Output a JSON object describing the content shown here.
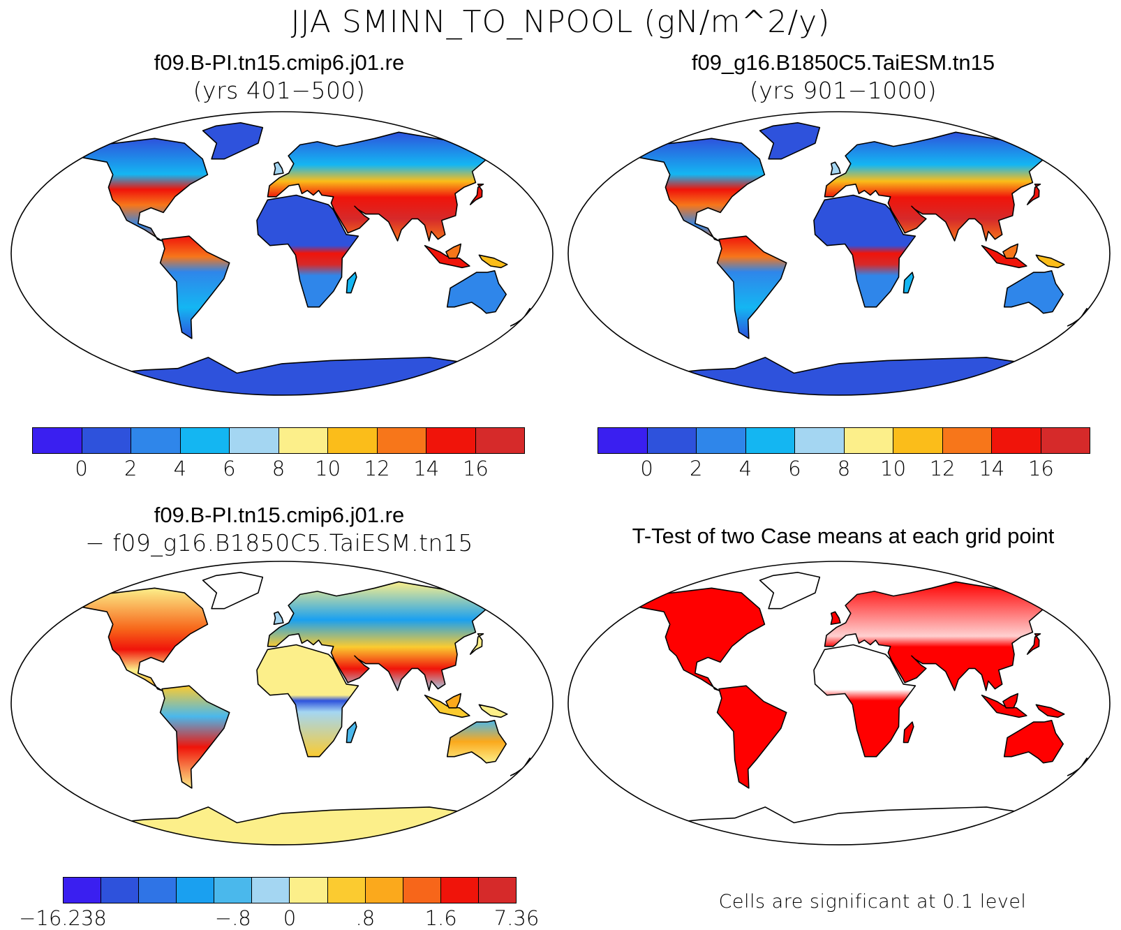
{
  "title": "JJA SMINN_TO_NPOOL (gN/m^2/y)",
  "panels": {
    "p1": {
      "line1": "f09.B-PI.tn15.cmip6.j01.re",
      "line2": "(yrs 401−500)"
    },
    "p2": {
      "line1": "f09_g16.B1850C5.TaiESM.tn15",
      "line2": "(yrs 901−1000)"
    },
    "p3": {
      "line1": "f09.B-PI.tn15.cmip6.j01.re",
      "line2": "− f09_g16.B1850C5.TaiESM.tn15"
    },
    "p4": {
      "line1": "T-Test of two Case means at each grid point",
      "note": "Cells are significant at 0.1 level"
    }
  },
  "colorbar_abs": {
    "colors": [
      "#3a1ff0",
      "#2e52dc",
      "#2f86ea",
      "#14b6f2",
      "#a4d6f2",
      "#fcef8a",
      "#fbbd1a",
      "#f7761a",
      "#f0140a",
      "#d62a2a"
    ],
    "ticks": [
      "0",
      "2",
      "4",
      "6",
      "8",
      "10",
      "12",
      "14",
      "16"
    ]
  },
  "colorbar_diff": {
    "colors": [
      "#3a1ff0",
      "#2e52dc",
      "#2f74e6",
      "#1aa0f0",
      "#4ab8ec",
      "#a4d6f2",
      "#fcef8a",
      "#fbcb30",
      "#fba91c",
      "#f7661a",
      "#f0140a",
      "#d62a2a"
    ],
    "ticks": [
      "−16.238",
      "−.8",
      "0",
      ".8",
      "1.6",
      "7.36"
    ]
  },
  "ttest": {
    "significant_color": "#ff0000"
  }
}
